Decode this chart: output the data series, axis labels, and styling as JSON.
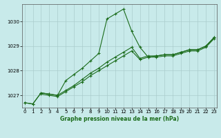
{
  "title": "Graphe pression niveau de la mer (hPa)",
  "bg_color": "#c8eaea",
  "grid_color": "#aacccc",
  "line_color": "#1a6b1a",
  "x_ticks": [
    0,
    1,
    2,
    3,
    4,
    5,
    6,
    7,
    8,
    9,
    10,
    11,
    12,
    13,
    14,
    15,
    16,
    17,
    18,
    19,
    20,
    21,
    22,
    23
  ],
  "y_ticks": [
    1027,
    1028,
    1029,
    1030
  ],
  "ylim": [
    1026.5,
    1030.7
  ],
  "xlim": [
    -0.3,
    23.3
  ],
  "series1_x": [
    0,
    1,
    2,
    3,
    4,
    5,
    6,
    7,
    8,
    9,
    10,
    11,
    12,
    13,
    14,
    15,
    16,
    17,
    18,
    19,
    20,
    21,
    22,
    23
  ],
  "series1_y": [
    1026.7,
    1026.65,
    1027.1,
    1027.05,
    1027.0,
    1027.6,
    1027.85,
    1028.1,
    1028.4,
    1028.7,
    1030.1,
    1030.3,
    1030.5,
    1029.6,
    1028.95,
    1028.55,
    1028.6,
    1028.65,
    1028.65,
    1028.75,
    1028.85,
    1028.85,
    1029.0,
    1029.35
  ],
  "series2_x": [
    0,
    1,
    2,
    3,
    4,
    5,
    6,
    7,
    8,
    9,
    10,
    11,
    12,
    13,
    14,
    15,
    16,
    17,
    18,
    19,
    20,
    21,
    22,
    23
  ],
  "series2_y": [
    1026.7,
    1026.65,
    1027.1,
    1027.05,
    1027.0,
    1027.2,
    1027.4,
    1027.65,
    1027.9,
    1028.1,
    1028.35,
    1028.55,
    1028.75,
    1028.95,
    1028.5,
    1028.6,
    1028.6,
    1028.65,
    1028.65,
    1028.75,
    1028.85,
    1028.85,
    1029.0,
    1029.35
  ],
  "series3_x": [
    2,
    3,
    4,
    5,
    6,
    7,
    8,
    9,
    10,
    11,
    12,
    13,
    14,
    15,
    16,
    17,
    18,
    19,
    20,
    21,
    22,
    23
  ],
  "series3_y": [
    1027.05,
    1027.0,
    1026.95,
    1027.15,
    1027.35,
    1027.55,
    1027.8,
    1028.0,
    1028.2,
    1028.4,
    1028.6,
    1028.8,
    1028.45,
    1028.55,
    1028.55,
    1028.6,
    1028.6,
    1028.7,
    1028.8,
    1028.8,
    1028.95,
    1029.3
  ]
}
